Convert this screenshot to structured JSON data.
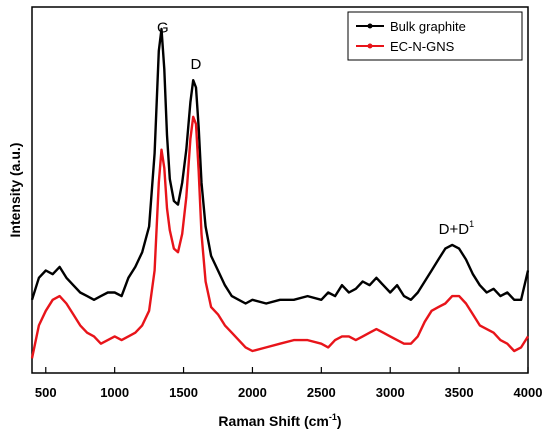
{
  "chart_data": {
    "type": "line",
    "title": "",
    "xlabel": "Raman Shift (cm",
    "xlabel_sup": "-1",
    "xlabel_close": ")",
    "ylabel": "Intensity (a.u.)",
    "xlim": [
      400,
      4000
    ],
    "ylim": [
      0,
      1
    ],
    "y_ticks_shown": false,
    "grid": false,
    "legend_position": "top-right",
    "x_ticks": [
      500,
      1000,
      1500,
      2000,
      2500,
      3000,
      3500,
      4000
    ],
    "annotations": [
      {
        "text": "G",
        "x": 1350,
        "y": 0.93
      },
      {
        "text": "D",
        "x": 1590,
        "y": 0.83
      },
      {
        "text": "D+D",
        "sup": "1",
        "x": 3480,
        "y": 0.38
      }
    ],
    "series": [
      {
        "name": "Bulk graphite",
        "color": "#000000",
        "x": [
          400,
          450,
          500,
          550,
          600,
          650,
          700,
          750,
          800,
          850,
          900,
          950,
          1000,
          1050,
          1100,
          1150,
          1200,
          1250,
          1290,
          1320,
          1340,
          1360,
          1380,
          1400,
          1430,
          1460,
          1490,
          1520,
          1550,
          1570,
          1590,
          1610,
          1630,
          1660,
          1700,
          1750,
          1800,
          1850,
          1900,
          1950,
          2000,
          2100,
          2200,
          2300,
          2400,
          2500,
          2550,
          2600,
          2650,
          2700,
          2750,
          2800,
          2850,
          2900,
          2950,
          3000,
          3050,
          3100,
          3150,
          3200,
          3250,
          3300,
          3350,
          3400,
          3450,
          3500,
          3550,
          3600,
          3650,
          3700,
          3750,
          3800,
          3850,
          3900,
          3950,
          4000
        ],
        "y": [
          0.2,
          0.26,
          0.28,
          0.27,
          0.29,
          0.26,
          0.24,
          0.22,
          0.21,
          0.2,
          0.21,
          0.22,
          0.22,
          0.21,
          0.26,
          0.29,
          0.33,
          0.4,
          0.6,
          0.88,
          0.94,
          0.83,
          0.65,
          0.53,
          0.47,
          0.46,
          0.52,
          0.61,
          0.74,
          0.8,
          0.78,
          0.67,
          0.52,
          0.4,
          0.32,
          0.28,
          0.24,
          0.21,
          0.2,
          0.19,
          0.2,
          0.19,
          0.2,
          0.2,
          0.21,
          0.2,
          0.22,
          0.21,
          0.24,
          0.22,
          0.23,
          0.25,
          0.24,
          0.26,
          0.24,
          0.22,
          0.24,
          0.21,
          0.2,
          0.22,
          0.25,
          0.28,
          0.31,
          0.34,
          0.35,
          0.34,
          0.31,
          0.27,
          0.24,
          0.22,
          0.23,
          0.21,
          0.22,
          0.2,
          0.2,
          0.28
        ]
      },
      {
        "name": "EC-N-GNS",
        "color": "#e8141a",
        "x": [
          400,
          450,
          500,
          550,
          600,
          650,
          700,
          750,
          800,
          850,
          900,
          950,
          1000,
          1050,
          1100,
          1150,
          1200,
          1250,
          1290,
          1320,
          1340,
          1360,
          1380,
          1400,
          1430,
          1460,
          1490,
          1520,
          1550,
          1570,
          1590,
          1610,
          1630,
          1660,
          1700,
          1750,
          1800,
          1850,
          1900,
          1950,
          2000,
          2100,
          2200,
          2300,
          2400,
          2500,
          2550,
          2600,
          2650,
          2700,
          2750,
          2800,
          2850,
          2900,
          2950,
          3000,
          3050,
          3100,
          3150,
          3200,
          3250,
          3300,
          3350,
          3400,
          3450,
          3500,
          3550,
          3600,
          3650,
          3700,
          3750,
          3800,
          3850,
          3900,
          3950,
          4000
        ],
        "y": [
          0.04,
          0.13,
          0.17,
          0.2,
          0.21,
          0.19,
          0.16,
          0.13,
          0.11,
          0.1,
          0.08,
          0.09,
          0.1,
          0.09,
          0.1,
          0.11,
          0.13,
          0.17,
          0.28,
          0.52,
          0.61,
          0.56,
          0.45,
          0.39,
          0.34,
          0.33,
          0.38,
          0.48,
          0.64,
          0.7,
          0.68,
          0.55,
          0.38,
          0.25,
          0.18,
          0.16,
          0.13,
          0.11,
          0.09,
          0.07,
          0.06,
          0.07,
          0.08,
          0.09,
          0.09,
          0.08,
          0.07,
          0.09,
          0.1,
          0.1,
          0.09,
          0.1,
          0.11,
          0.12,
          0.11,
          0.1,
          0.09,
          0.08,
          0.08,
          0.1,
          0.14,
          0.17,
          0.18,
          0.19,
          0.21,
          0.21,
          0.19,
          0.16,
          0.13,
          0.12,
          0.11,
          0.09,
          0.08,
          0.06,
          0.07,
          0.1
        ]
      }
    ]
  }
}
